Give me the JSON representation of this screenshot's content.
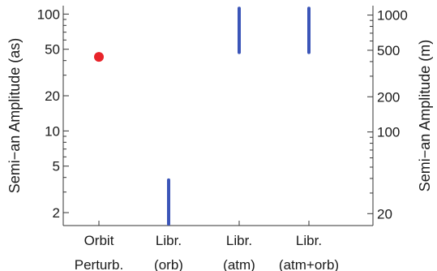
{
  "chart_data": {
    "type": "scatter",
    "categories": [
      [
        "Orbit",
        "Perturb."
      ],
      [
        "Libr.",
        "(orb)"
      ],
      [
        "Libr.",
        "(atm)"
      ],
      [
        "Libr.",
        "(atm+orb)"
      ]
    ],
    "y_left": {
      "label": "Semi−an Amplitude (as)",
      "scale": "log",
      "range": [
        1.55,
        118
      ],
      "ticks": [
        2,
        5,
        10,
        20,
        50,
        100
      ]
    },
    "y_right": {
      "label": "Semi−an Amplitude (m)",
      "scale": "log",
      "ticks": [
        20,
        100,
        200,
        500,
        1000
      ]
    },
    "series": [
      {
        "kind": "point",
        "category": 0,
        "value": 43,
        "color": "#e8242a"
      },
      {
        "kind": "range",
        "category": 1,
        "min": 1.6,
        "max": 3.8,
        "color": "#3b55b8"
      },
      {
        "kind": "range",
        "category": 2,
        "min": 47,
        "max": 112,
        "color": "#3b55b8"
      },
      {
        "kind": "range",
        "category": 3,
        "min": 47,
        "max": 112,
        "color": "#3b55b8"
      }
    ],
    "grid": false,
    "legend": "none"
  }
}
